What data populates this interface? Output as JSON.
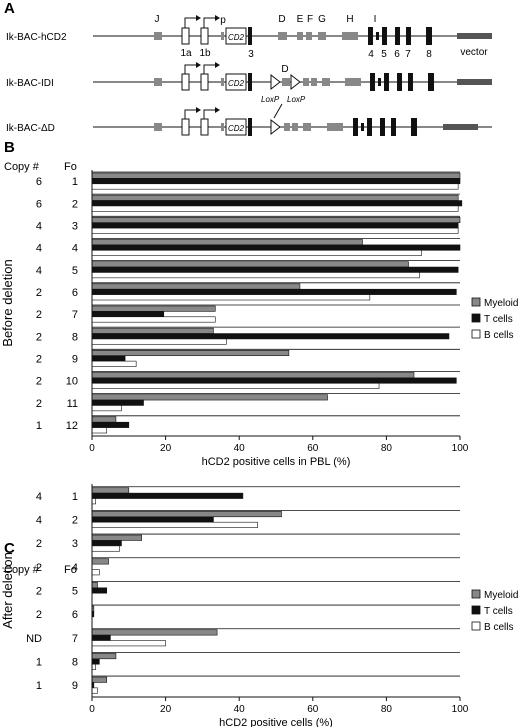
{
  "panelA": {
    "label": "A",
    "constructs": [
      {
        "name": "Ik-BAC-hCD2"
      },
      {
        "name": "Ik-BAC-IDI"
      },
      {
        "name": "Ik-BAC-ΔD"
      }
    ],
    "exon_labels": {
      "J": "J",
      "p": "p",
      "D": "D",
      "E": "E",
      "F": "F",
      "G": "G",
      "H": "H",
      "I": "I",
      "e1a": "1a",
      "e1b": "1b",
      "e3": "3",
      "e4": "4",
      "e5": "5",
      "e6": "6",
      "e7": "7",
      "e8": "8"
    },
    "cd2_text": "CD2",
    "vector_label": "vector",
    "loxp_label": "LoxP",
    "d_label": "D"
  },
  "colors": {
    "myeloid": "#888888",
    "tcells": "#111111",
    "bcells": "#ffffff",
    "gene_box": "#888888",
    "exon": "#111111"
  },
  "chart_data": [
    {
      "panel": "B",
      "type": "bar",
      "orientation": "horizontal",
      "side_label": "Before deletion",
      "col_headers": {
        "copy": "Copy #",
        "fo": "Fo"
      },
      "categories": [
        "1",
        "2",
        "3",
        "4",
        "5",
        "6",
        "7",
        "8",
        "9",
        "10",
        "11",
        "12"
      ],
      "copy_numbers": [
        "6",
        "6",
        "4",
        "4",
        "4",
        "2",
        "2",
        "2",
        "2",
        "2",
        "2",
        "1"
      ],
      "series": [
        {
          "name": "Myeloid",
          "color": "#888888",
          "values": [
            100,
            99.5,
            100,
            73.5,
            86,
            56.5,
            33.5,
            33,
            53.5,
            87.5,
            64,
            6.5
          ]
        },
        {
          "name": "T cells",
          "color": "#111111",
          "values": [
            100,
            100.5,
            99.5,
            100,
            99.5,
            99,
            19.5,
            97,
            9,
            99,
            14,
            10
          ]
        },
        {
          "name": "B cells",
          "color": "#ffffff",
          "values": [
            99.5,
            99.5,
            99.5,
            89.5,
            89,
            75.5,
            33.5,
            36.5,
            12,
            78,
            8,
            4
          ]
        }
      ],
      "xlabel": "hCD2 positive cells in PBL (%)",
      "xlim": [
        0,
        100
      ],
      "xticks": [
        "0",
        "20",
        "40",
        "60",
        "80",
        "100"
      ],
      "legend_position": "right"
    },
    {
      "panel": "C",
      "type": "bar",
      "orientation": "horizontal",
      "side_label": "After deletion",
      "col_headers": {
        "copy": "Copy #",
        "fo": "Fo"
      },
      "categories": [
        "1",
        "2",
        "3",
        "4",
        "5",
        "6",
        "7",
        "8",
        "9"
      ],
      "copy_numbers": [
        "4",
        "4",
        "2",
        "2",
        "2",
        "2",
        "ND",
        "1",
        "1"
      ],
      "series": [
        {
          "name": "Myeloid",
          "color": "#888888",
          "values": [
            10,
            51.5,
            13.5,
            4.5,
            1.5,
            0.5,
            34,
            6.5,
            4
          ]
        },
        {
          "name": "T cells",
          "color": "#111111",
          "values": [
            41,
            33,
            8,
            0,
            4,
            0.5,
            5,
            2,
            0.5
          ]
        },
        {
          "name": "B cells",
          "color": "#ffffff",
          "values": [
            1,
            45,
            7.5,
            2,
            0,
            0,
            20,
            1,
            1.5
          ]
        }
      ],
      "xlabel": "hCD2 positive cells (%)",
      "xlim": [
        0,
        100
      ],
      "xticks": [
        "0",
        "20",
        "40",
        "60",
        "80",
        "100"
      ],
      "legend_position": "right"
    }
  ]
}
